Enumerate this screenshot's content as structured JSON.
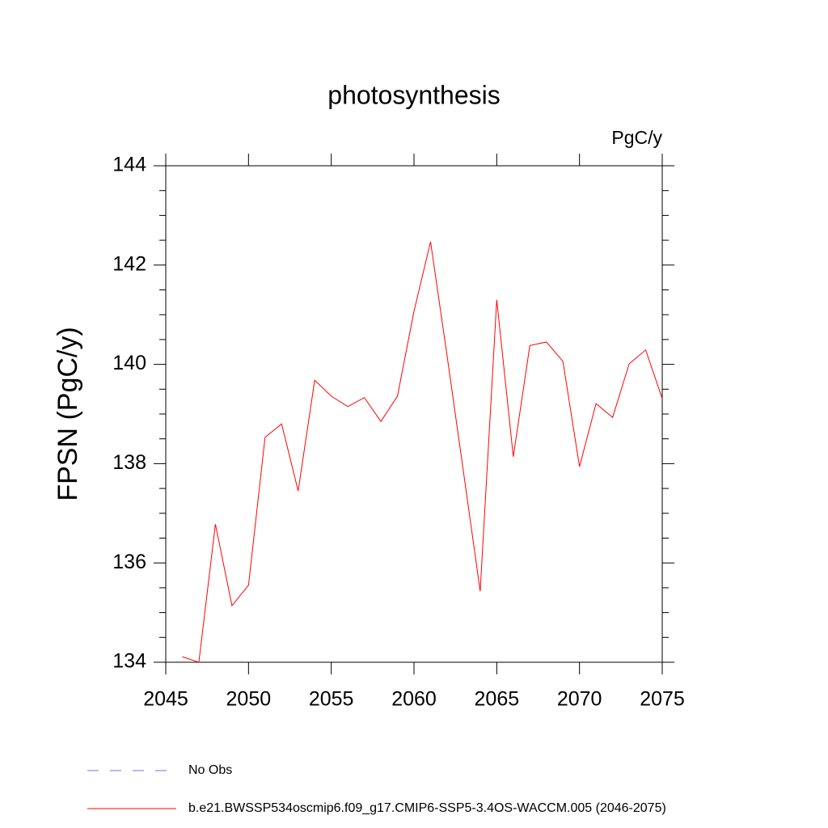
{
  "chart_data": {
    "type": "line",
    "title": "photosynthesis",
    "units": "PgC/y",
    "y_label": "FPSN  (PgC/y)",
    "x": [
      2046,
      2047,
      2048,
      2049,
      2050,
      2051,
      2052,
      2053,
      2054,
      2055,
      2056,
      2057,
      2058,
      2059,
      2060,
      2061,
      2062,
      2063,
      2064,
      2065,
      2066,
      2067,
      2068,
      2069,
      2070,
      2071,
      2072,
      2073,
      2074,
      2075
    ],
    "series": [
      {
        "name": "b.e21.BWSSP534oscmip6.f09_g17.CMIP6-SSP5-3.4OS-WACCM.005 (2046-2075)",
        "color": "#ff0000",
        "values": [
          134.11,
          134.0,
          136.78,
          135.14,
          135.55,
          138.53,
          138.8,
          137.45,
          139.68,
          139.36,
          139.15,
          139.33,
          138.85,
          139.36,
          141.07,
          142.47,
          140.17,
          137.81,
          135.43,
          141.3,
          138.14,
          140.38,
          140.45,
          140.06,
          137.94,
          139.21,
          138.93,
          140.01,
          140.29,
          139.31
        ]
      }
    ],
    "reference_series": {
      "name": "No Obs",
      "color": "#7b68ee"
    },
    "xlim": [
      2045,
      2075
    ],
    "xticks": [
      2045,
      2050,
      2055,
      2060,
      2065,
      2070,
      2075
    ],
    "ylim": [
      134,
      144
    ],
    "yticks": [
      134,
      136,
      138,
      140,
      142,
      144
    ],
    "yminorticks": [
      134.5,
      135,
      135.5,
      136.5,
      137,
      137.5,
      138.5,
      139,
      139.5,
      140.5,
      141,
      141.5,
      142.5,
      143,
      143.5
    ]
  }
}
